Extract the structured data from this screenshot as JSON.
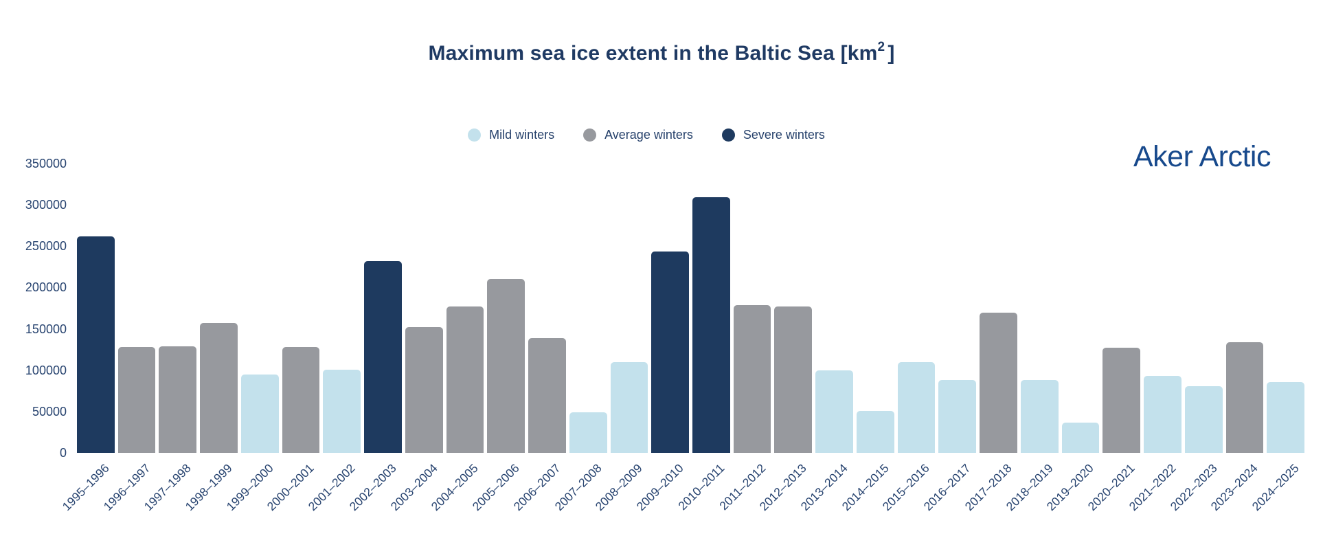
{
  "title": {
    "prefix": "Maximum sea ice extent in the Baltic Sea [km",
    "superscript": "2",
    "suffix": "]"
  },
  "logo": {
    "text": "Aker Arctic"
  },
  "legend": {
    "items": [
      {
        "key": "mild",
        "label": "Mild winters",
        "color": "#c3e1ec"
      },
      {
        "key": "average",
        "label": "Average winters",
        "color": "#97999e"
      },
      {
        "key": "severe",
        "label": "Severe winters",
        "color": "#1e3a5f"
      }
    ]
  },
  "colors": {
    "mild": "#c3e1ec",
    "average": "#97999e",
    "severe": "#1e3a5f",
    "text_navy": "#284470",
    "title_navy": "#1f3a63",
    "logo_blue": "#17498c"
  },
  "chart_data": {
    "type": "bar",
    "title": "Maximum sea ice extent in the Baltic Sea [km²]",
    "xlabel": "",
    "ylabel": "",
    "ylim": [
      0,
      350000
    ],
    "ytick_interval": 50000,
    "yticks": [
      0,
      50000,
      100000,
      150000,
      200000,
      250000,
      300000,
      350000
    ],
    "grid": false,
    "legend_position": "top-center",
    "categories": [
      "1995–1996",
      "1996–1997",
      "1997–1998",
      "1998–1999",
      "1999–2000",
      "2000–2001",
      "2001–2002",
      "2002–2003",
      "2003–2004",
      "2004–2005",
      "2005–2006",
      "2006–2007",
      "2007–2008",
      "2008–2009",
      "2009–2010",
      "2010–2011",
      "2011–2012",
      "2012–2013",
      "2013–2014",
      "2014–2015",
      "2015–2016",
      "2016–2017",
      "2017–2018",
      "2018–2019",
      "2019–2020",
      "2020–2021",
      "2021–2022",
      "2022–2023",
      "2023–2024",
      "2024–2025"
    ],
    "values": [
      262000,
      128000,
      129000,
      157000,
      95000,
      128000,
      101000,
      232000,
      152000,
      177000,
      210000,
      139000,
      49000,
      110000,
      244000,
      309000,
      179000,
      177000,
      100000,
      51000,
      110000,
      88000,
      170000,
      88000,
      37000,
      127000,
      93000,
      81000,
      134000,
      86000
    ],
    "severity": [
      "severe",
      "average",
      "average",
      "average",
      "mild",
      "average",
      "mild",
      "severe",
      "average",
      "average",
      "average",
      "average",
      "mild",
      "mild",
      "severe",
      "severe",
      "average",
      "average",
      "mild",
      "mild",
      "mild",
      "mild",
      "average",
      "mild",
      "mild",
      "average",
      "mild",
      "mild",
      "average",
      "mild"
    ]
  }
}
